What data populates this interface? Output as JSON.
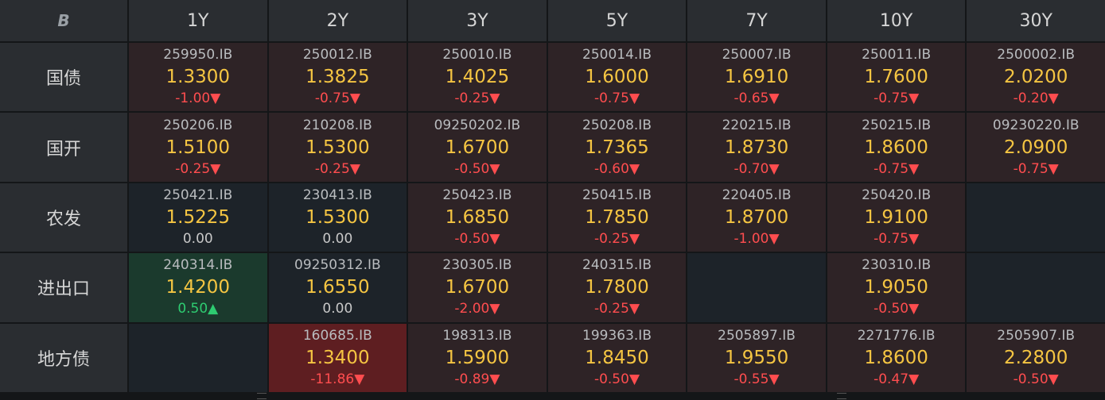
{
  "header": {
    "logo": "B",
    "tenors": [
      "1Y",
      "2Y",
      "3Y",
      "5Y",
      "7Y",
      "10Y",
      "30Y"
    ]
  },
  "rows": [
    {
      "label": "国债",
      "cells": [
        {
          "code": "259950.IB",
          "rate": "1.3300",
          "change": "-1.00",
          "dir": "down",
          "tone": "red"
        },
        {
          "code": "250012.IB",
          "rate": "1.3825",
          "change": "-0.75",
          "dir": "down",
          "tone": "red"
        },
        {
          "code": "250010.IB",
          "rate": "1.4025",
          "change": "-0.25",
          "dir": "down",
          "tone": "red"
        },
        {
          "code": "250014.IB",
          "rate": "1.6000",
          "change": "-0.75",
          "dir": "down",
          "tone": "red"
        },
        {
          "code": "250007.IB",
          "rate": "1.6910",
          "change": "-0.65",
          "dir": "down",
          "tone": "red"
        },
        {
          "code": "250011.IB",
          "rate": "1.7600",
          "change": "-0.75",
          "dir": "down",
          "tone": "red"
        },
        {
          "code": "2500002.IB",
          "rate": "2.0200",
          "change": "-0.20",
          "dir": "down",
          "tone": "red"
        }
      ]
    },
    {
      "label": "国开",
      "cells": [
        {
          "code": "250206.IB",
          "rate": "1.5100",
          "change": "-0.25",
          "dir": "down",
          "tone": "red"
        },
        {
          "code": "210208.IB",
          "rate": "1.5300",
          "change": "-0.25",
          "dir": "down",
          "tone": "red"
        },
        {
          "code": "09250202.IB",
          "rate": "1.6700",
          "change": "-0.50",
          "dir": "down",
          "tone": "red"
        },
        {
          "code": "250208.IB",
          "rate": "1.7365",
          "change": "-0.60",
          "dir": "down",
          "tone": "red"
        },
        {
          "code": "220215.IB",
          "rate": "1.8730",
          "change": "-0.70",
          "dir": "down",
          "tone": "red"
        },
        {
          "code": "250215.IB",
          "rate": "1.8600",
          "change": "-0.75",
          "dir": "down",
          "tone": "red"
        },
        {
          "code": "09230220.IB",
          "rate": "2.0900",
          "change": "-0.75",
          "dir": "down",
          "tone": "red"
        }
      ]
    },
    {
      "label": "农发",
      "cells": [
        {
          "code": "250421.IB",
          "rate": "1.5225",
          "change": "0.00",
          "dir": "flat",
          "tone": "neutral"
        },
        {
          "code": "230413.IB",
          "rate": "1.5300",
          "change": "0.00",
          "dir": "flat",
          "tone": "neutral"
        },
        {
          "code": "250423.IB",
          "rate": "1.6850",
          "change": "-0.50",
          "dir": "down",
          "tone": "red"
        },
        {
          "code": "250415.IB",
          "rate": "1.7850",
          "change": "-0.25",
          "dir": "down",
          "tone": "red"
        },
        {
          "code": "220405.IB",
          "rate": "1.8700",
          "change": "-1.00",
          "dir": "down",
          "tone": "red"
        },
        {
          "code": "250420.IB",
          "rate": "1.9100",
          "change": "-0.75",
          "dir": "down",
          "tone": "red"
        },
        null
      ]
    },
    {
      "label": "进出口",
      "cells": [
        {
          "code": "240314.IB",
          "rate": "1.4200",
          "change": "0.50",
          "dir": "up",
          "tone": "green"
        },
        {
          "code": "09250312.IB",
          "rate": "1.6550",
          "change": "0.00",
          "dir": "flat",
          "tone": "neutral"
        },
        {
          "code": "230305.IB",
          "rate": "1.6700",
          "change": "-2.00",
          "dir": "down",
          "tone": "red"
        },
        {
          "code": "240315.IB",
          "rate": "1.7800",
          "change": "-0.25",
          "dir": "down",
          "tone": "red"
        },
        null,
        {
          "code": "230310.IB",
          "rate": "1.9050",
          "change": "-0.50",
          "dir": "down",
          "tone": "red"
        },
        null
      ]
    },
    {
      "label": "地方债",
      "cells": [
        null,
        {
          "code": "160685.IB",
          "rate": "1.3400",
          "change": "-11.86",
          "dir": "down",
          "tone": "strong"
        },
        {
          "code": "198313.IB",
          "rate": "1.5900",
          "change": "-0.89",
          "dir": "down",
          "tone": "red"
        },
        {
          "code": "199363.IB",
          "rate": "1.8450",
          "change": "-0.50",
          "dir": "down",
          "tone": "red"
        },
        {
          "code": "2505897.IB",
          "rate": "1.9550",
          "change": "-0.55",
          "dir": "down",
          "tone": "red"
        },
        {
          "code": "2271776.IB",
          "rate": "1.8600",
          "change": "-0.47",
          "dir": "down",
          "tone": "red"
        },
        {
          "code": "2505907.IB",
          "rate": "2.2800",
          "change": "-0.50",
          "dir": "down",
          "tone": "red"
        }
      ]
    }
  ],
  "arrows": {
    "down": "▼",
    "up": "▲"
  },
  "colors": {
    "rate": "#f5c542",
    "down": "#ff4d4f",
    "up": "#2ecc71",
    "flat": "#c8c8c8"
  }
}
